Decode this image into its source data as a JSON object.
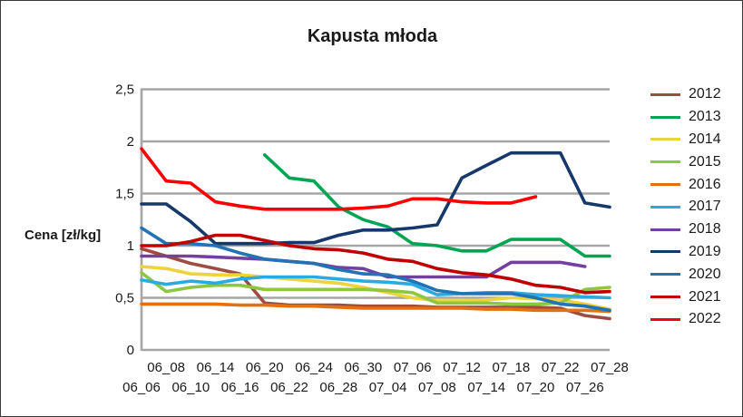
{
  "window": {
    "background": "#ffffff",
    "border_color": "#3a3a3a"
  },
  "chart_data": {
    "type": "line",
    "title": "Kapusta młoda",
    "ylabel": "Cena [zł/kg]",
    "xlabel": "",
    "ylim": [
      0,
      2.5
    ],
    "ytick_step": 0.5,
    "ytick_labels": [
      "0",
      "0,5",
      "1",
      "1,5",
      "2",
      "2,5"
    ],
    "grid": true,
    "grid_color": "#A6A6A6",
    "legend_position": "right",
    "legend_years": [
      "2012",
      "2013",
      "2014",
      "2015",
      "2016",
      "2017",
      "2018",
      "2019",
      "2020",
      "2021",
      "2022"
    ],
    "categories": [
      "06_06",
      "06_08",
      "06_10",
      "06_14",
      "06_16",
      "06_20",
      "06_22",
      "06_24",
      "06_28",
      "06_30",
      "07_04",
      "07_06",
      "07_08",
      "07_12",
      "07_14",
      "07_18",
      "07_20",
      "07_22",
      "07_26",
      "07_28"
    ],
    "series": [
      {
        "name": "2012",
        "color": "#9E4B41",
        "values": [
          0.97,
          0.9,
          0.83,
          0.78,
          0.73,
          0.45,
          0.43,
          0.43,
          0.43,
          0.42,
          0.42,
          0.42,
          0.41,
          0.41,
          0.41,
          0.41,
          0.41,
          0.4,
          0.33,
          0.3
        ]
      },
      {
        "name": "2013",
        "color": "#00A551",
        "values": [
          null,
          null,
          null,
          null,
          null,
          1.87,
          1.65,
          1.62,
          1.37,
          1.25,
          1.18,
          1.02,
          1.0,
          0.95,
          0.95,
          1.06,
          1.06,
          1.06,
          0.9,
          0.9
        ]
      },
      {
        "name": "2014",
        "color": "#EED33C",
        "values": [
          0.8,
          0.78,
          0.73,
          0.72,
          0.72,
          0.7,
          0.68,
          0.66,
          0.64,
          0.6,
          0.55,
          0.5,
          0.47,
          0.47,
          0.48,
          0.5,
          0.49,
          0.48,
          0.44,
          0.39
        ]
      },
      {
        "name": "2015",
        "color": "#8DC63F",
        "values": [
          0.74,
          0.56,
          0.6,
          0.62,
          0.62,
          0.58,
          0.58,
          0.58,
          0.58,
          0.58,
          0.57,
          0.55,
          0.45,
          0.45,
          0.45,
          0.44,
          0.44,
          0.45,
          0.58,
          0.6
        ]
      },
      {
        "name": "2016",
        "color": "#E4700E",
        "values": [
          0.44,
          0.44,
          0.44,
          0.44,
          0.43,
          0.43,
          0.42,
          0.42,
          0.41,
          0.4,
          0.4,
          0.4,
          0.4,
          0.4,
          0.39,
          0.39,
          0.38,
          0.38,
          0.38,
          0.37
        ]
      },
      {
        "name": "2017",
        "color": "#29ABE2",
        "values": [
          0.67,
          0.63,
          0.66,
          0.64,
          0.68,
          0.7,
          0.7,
          0.7,
          0.68,
          0.66,
          0.65,
          0.63,
          0.53,
          0.54,
          0.55,
          0.55,
          0.53,
          0.52,
          0.51,
          0.5
        ]
      },
      {
        "name": "2018",
        "color": "#7440A0",
        "values": [
          0.9,
          0.9,
          0.9,
          0.89,
          0.88,
          0.87,
          0.85,
          0.83,
          0.79,
          0.78,
          0.7,
          0.7,
          0.7,
          0.7,
          0.7,
          0.84,
          0.84,
          0.84,
          0.8,
          null
        ]
      },
      {
        "name": "2019",
        "color": "#16386B",
        "values": [
          1.4,
          1.4,
          1.23,
          1.02,
          1.02,
          1.02,
          1.03,
          1.03,
          1.1,
          1.15,
          1.15,
          1.17,
          1.2,
          1.65,
          1.77,
          1.89,
          1.89,
          1.89,
          1.41,
          1.37
        ]
      },
      {
        "name": "2020",
        "color": "#2273B5",
        "values": [
          1.17,
          1.02,
          1.02,
          1.0,
          0.93,
          0.87,
          0.85,
          0.83,
          0.77,
          0.73,
          0.72,
          0.66,
          0.57,
          0.54,
          0.54,
          0.54,
          0.5,
          0.44,
          0.42,
          0.38
        ]
      },
      {
        "name": "2021",
        "color": "#C00000",
        "values": [
          1.0,
          1.0,
          1.04,
          1.1,
          1.1,
          1.05,
          1.0,
          0.97,
          0.96,
          0.93,
          0.87,
          0.85,
          0.78,
          0.74,
          0.72,
          0.68,
          0.62,
          0.6,
          0.55,
          0.56
        ]
      },
      {
        "name": "2022",
        "color": "#FB0000",
        "values": [
          1.93,
          1.62,
          1.6,
          1.42,
          1.38,
          1.35,
          1.35,
          1.35,
          1.35,
          1.36,
          1.38,
          1.45,
          1.45,
          1.42,
          1.41,
          1.41,
          1.47,
          null,
          null,
          null
        ]
      }
    ]
  }
}
